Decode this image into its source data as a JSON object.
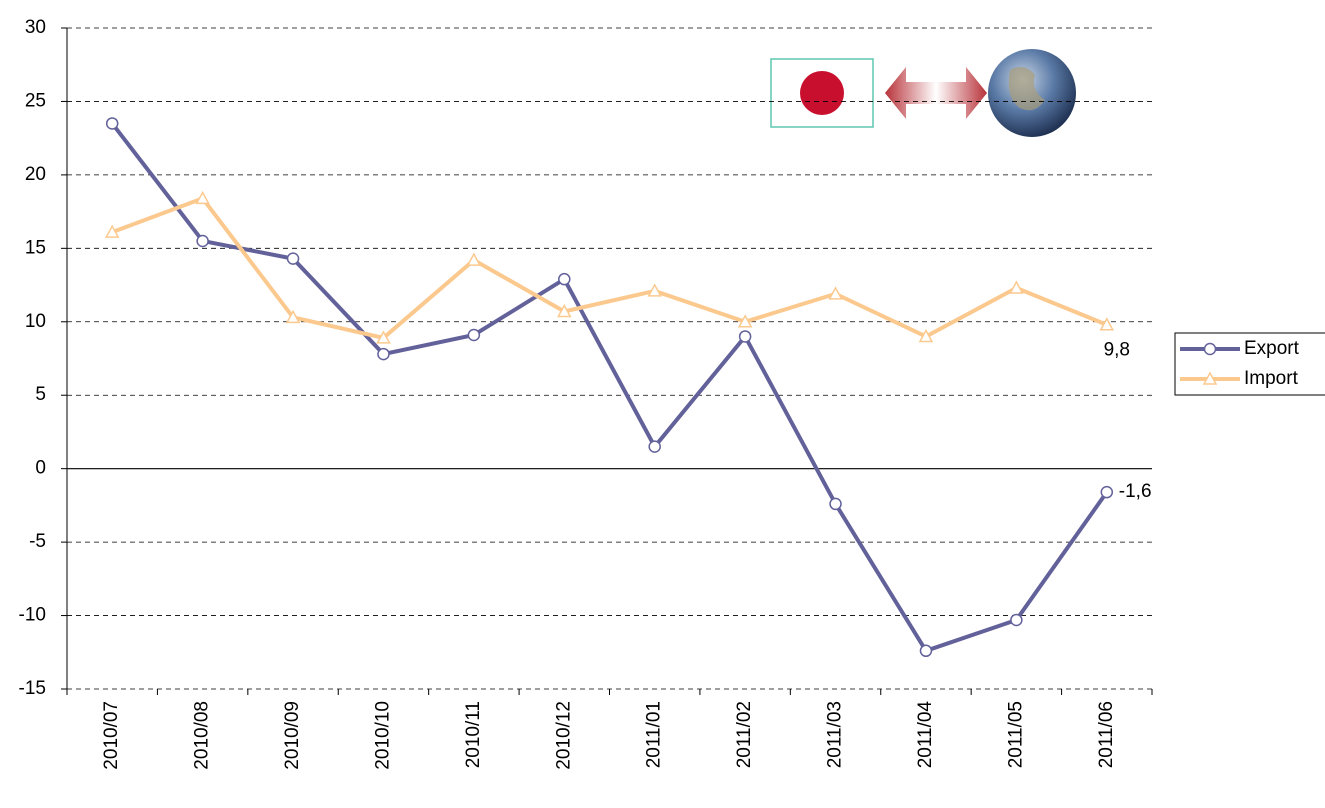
{
  "chart_data": {
    "type": "line",
    "categories": [
      "2010/07",
      "2010/08",
      "2010/09",
      "2010/10",
      "2010/11",
      "2010/12",
      "2011/01",
      "2011/02",
      "2011/03",
      "2011/04",
      "2011/05",
      "2011/06"
    ],
    "series": [
      {
        "name": "Export",
        "color": "#62619a",
        "marker": "circle",
        "values": [
          23.5,
          15.5,
          14.3,
          7.8,
          9.1,
          12.9,
          1.5,
          9.0,
          -2.4,
          -12.4,
          -10.3,
          -1.6
        ],
        "value_labels": [
          null,
          null,
          null,
          null,
          null,
          null,
          null,
          null,
          null,
          null,
          null,
          "-1,6"
        ]
      },
      {
        "name": "Import",
        "color": "#fbc98e",
        "marker": "triangle",
        "values": [
          16.1,
          18.4,
          10.3,
          8.9,
          14.2,
          10.7,
          12.1,
          10.0,
          11.9,
          9.0,
          12.3,
          9.8
        ],
        "value_labels": [
          null,
          null,
          null,
          null,
          null,
          null,
          null,
          null,
          null,
          null,
          null,
          "9,8"
        ]
      }
    ],
    "ylim": [
      -15,
      30
    ],
    "yticks": [
      -15,
      -10,
      -5,
      0,
      5,
      10,
      15,
      20,
      25,
      30
    ],
    "grid": true
  }
}
